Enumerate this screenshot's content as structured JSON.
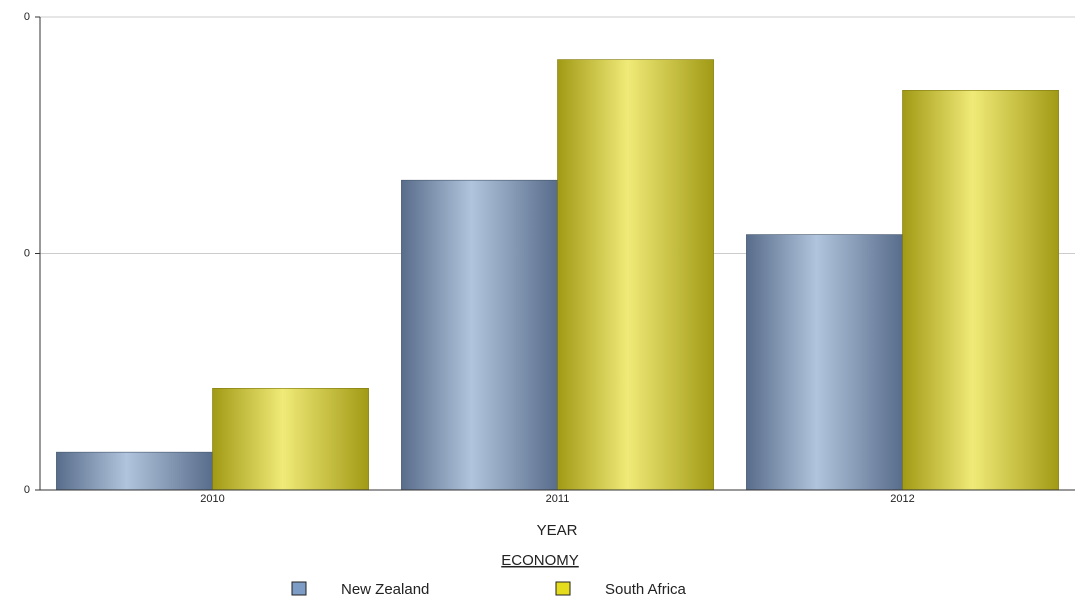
{
  "chart_data": {
    "type": "bar",
    "x_label": "YEAR",
    "legend_title": "ECONOMY",
    "categories": [
      "2010",
      "2011",
      "2012"
    ],
    "series": [
      {
        "name": "New Zealand",
        "color": "#7d9cc6",
        "values": [
          0.016,
          0.131,
          0.108
        ]
      },
      {
        "name": "South Africa",
        "color": "#e6dc1e",
        "values": [
          0.043,
          0.182,
          0.169
        ]
      }
    ],
    "ylim": [
      0,
      0.2
    ],
    "yticks": [
      {
        "value": 0,
        "label": "0"
      },
      {
        "value": 0.1,
        "label": "0"
      },
      {
        "value": 0.2,
        "label": "0"
      }
    ],
    "grid": true
  }
}
